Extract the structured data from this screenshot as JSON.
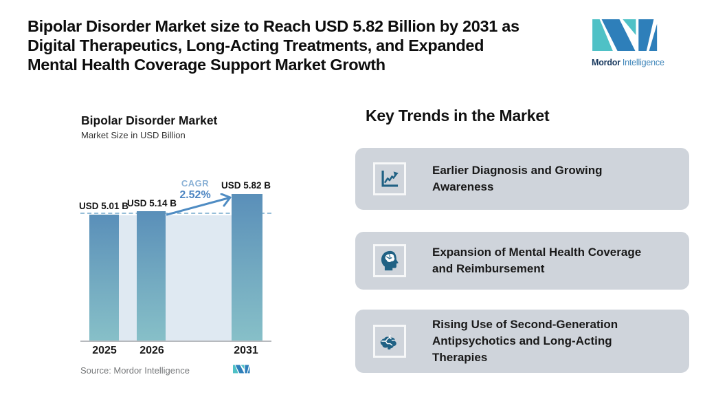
{
  "header": {
    "title": "Bipolar Disorder Market size to Reach USD 5.82 Billion by 2031 as\nDigital Therapeutics, Long-Acting Treatments, and Expanded\nMental Health Coverage Support Market Growth"
  },
  "brand": {
    "name_primary": "Mordor",
    "name_secondary": "Intelligence",
    "teal": "#4fc1c6",
    "blue": "#2e7fba"
  },
  "chart": {
    "source": "Source: Mordor Intelligence"
  },
  "chart_data": {
    "type": "bar",
    "title": "Bipolar Disorder Market",
    "subtitle": "Market Size in USD Billion",
    "categories": [
      "2025",
      "2026",
      "2031"
    ],
    "values": [
      5.01,
      5.14,
      5.82
    ],
    "bar_labels": [
      "USD 5.01 B",
      "USD 5.14 B",
      "USD 5.82 B"
    ],
    "ylabel": "Market Size in USD Billion",
    "ylim": [
      0,
      6.2
    ],
    "grid": "off",
    "annotations": {
      "cagr_label": "CAGR",
      "cagr_value": "2.52%",
      "reference_line_at": 5.14
    },
    "colors": {
      "bar_gradient_top": "#5a8fb9",
      "bar_gradient_bottom": "#87c0c8",
      "plot_panel": "#dfe9f2",
      "dashed_line": "#96bed8",
      "arrow": "#4f8cc3"
    }
  },
  "trends": {
    "heading": "Key Trends in the Market",
    "cards": [
      {
        "icon": "line-chart-icon",
        "title": "Earlier Diagnosis and Growing\nAwareness"
      },
      {
        "icon": "head-brain-icon",
        "title": "Expansion of Mental Health Coverage\nand Reimbursement"
      },
      {
        "icon": "brain-icon",
        "title": "Rising Use of Second-Generation\nAntipsychotics and Long-Acting\nTherapies"
      }
    ]
  }
}
